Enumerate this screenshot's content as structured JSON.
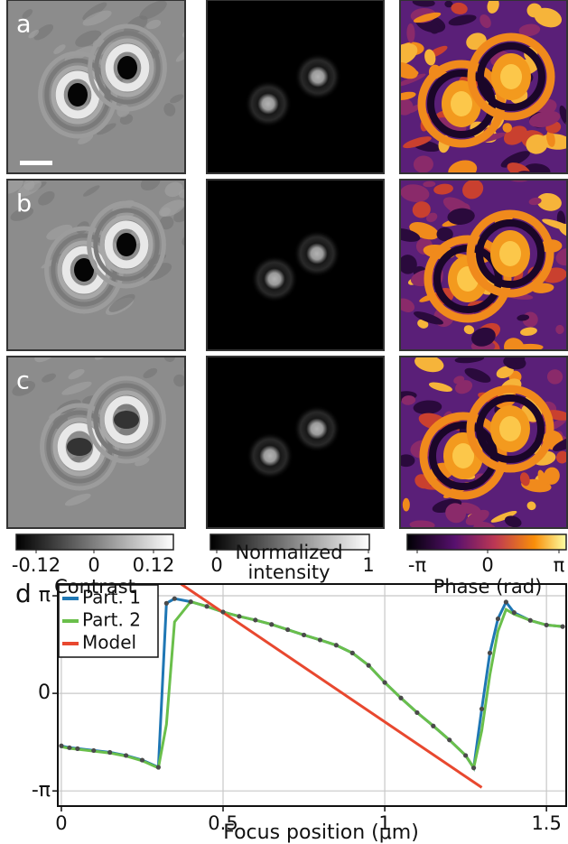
{
  "panel_labels": [
    "a",
    "b",
    "c"
  ],
  "colorbars": [
    {
      "ticks": [
        "-0.12",
        "0",
        "0.12"
      ],
      "label": "Contrast"
    },
    {
      "ticks": [
        "0",
        "1"
      ],
      "label": "Normalized intensity"
    },
    {
      "ticks": [
        "-π",
        "0",
        "π"
      ],
      "label": "Phase (rad)"
    }
  ],
  "chart_data": {
    "type": "line",
    "panel_label": "d",
    "xlabel": "Focus position (μm)",
    "x": [
      0,
      0.025,
      0.05,
      0.1,
      0.15,
      0.2,
      0.25,
      0.3,
      0.325,
      0.35,
      0.4,
      0.45,
      0.5,
      0.55,
      0.6,
      0.65,
      0.7,
      0.75,
      0.8,
      0.85,
      0.9,
      0.95,
      1.0,
      1.05,
      1.1,
      1.15,
      1.2,
      1.25,
      1.275,
      1.3,
      1.325,
      1.35,
      1.375,
      1.4,
      1.45,
      1.5,
      1.55
    ],
    "series": [
      {
        "name": "Part. 1",
        "color": "#1f77b4",
        "marker_color": "#4a4a4a",
        "values": [
          -1.69,
          -1.75,
          -1.78,
          -1.84,
          -1.9,
          -2.0,
          -2.15,
          -2.38,
          2.9,
          3.05,
          2.95,
          2.8,
          2.62,
          2.48,
          2.36,
          2.22,
          2.05,
          1.88,
          1.72,
          1.55,
          1.3,
          0.9,
          0.35,
          -0.15,
          -0.62,
          -1.05,
          -1.5,
          -2.0,
          -2.4,
          -0.5,
          1.3,
          2.4,
          2.94,
          2.6,
          2.35,
          2.2,
          2.15
        ]
      },
      {
        "name": "Part. 2",
        "color": "#6abf4b",
        "values": [
          -1.72,
          -1.77,
          -1.8,
          -1.86,
          -1.92,
          -2.02,
          -2.17,
          -2.4,
          -1.0,
          2.3,
          2.95,
          2.8,
          2.62,
          2.48,
          2.36,
          2.22,
          2.05,
          1.88,
          1.72,
          1.55,
          1.3,
          0.9,
          0.35,
          -0.15,
          -0.62,
          -1.05,
          -1.5,
          -2.0,
          -2.4,
          -1.2,
          0.6,
          2.0,
          2.7,
          2.55,
          2.35,
          2.2,
          2.15
        ]
      },
      {
        "name": "Model",
        "color": "#e8482f",
        "x": [
          0.37,
          1.3
        ],
        "values": [
          3.52,
          -3.03
        ]
      }
    ],
    "xlim": [
      -0.011,
      1.561
    ],
    "ylim": [
      -3.63,
      3.52
    ],
    "xticks": [
      0,
      0.5,
      1,
      1.5
    ],
    "yticks": [
      {
        "value": 3.14159,
        "label": "π"
      },
      0,
      {
        "value": -3.14159,
        "label": "-π"
      }
    ],
    "grid": true,
    "legend": "upper left"
  }
}
